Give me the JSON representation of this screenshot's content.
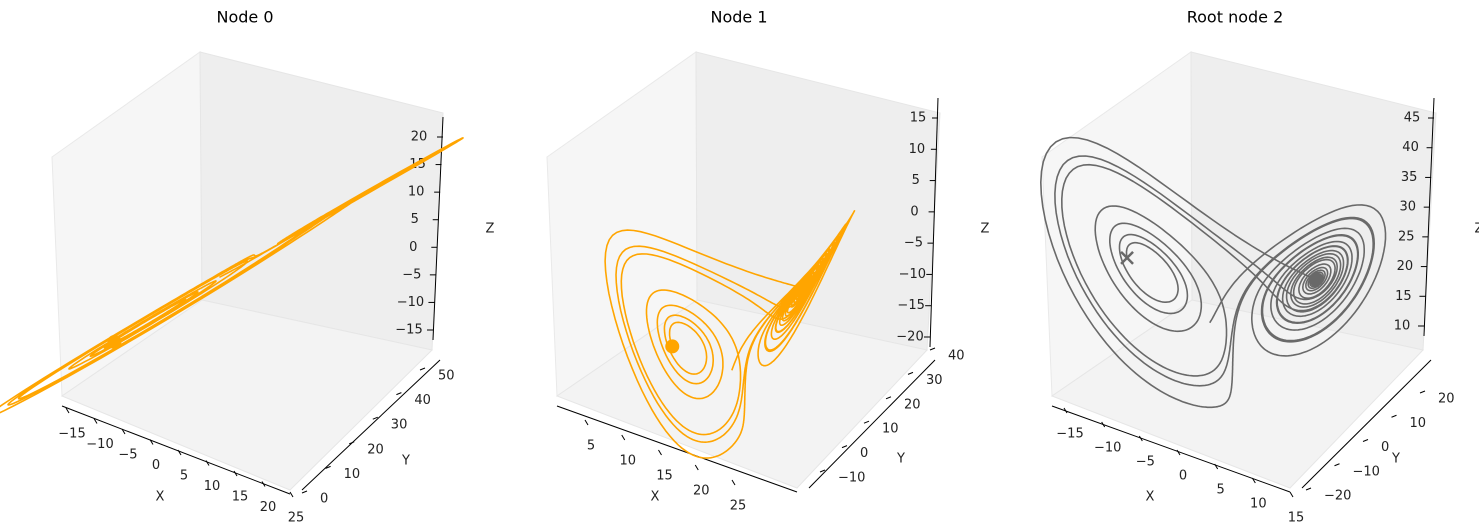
{
  "chart_data": [
    {
      "type": "line3d",
      "title": "Node 0",
      "xlabel": "X",
      "ylabel": "Y",
      "zlabel": "Z",
      "xticks": [
        "−15",
        "−10",
        "−5",
        "0",
        "5",
        "10",
        "15",
        "20",
        "25"
      ],
      "yticks": [
        "0",
        "10",
        "20",
        "30",
        "40",
        "50"
      ],
      "zticks": [
        "−15",
        "−10",
        "−5",
        "0",
        "5",
        "10",
        "15",
        "20"
      ],
      "xlim": [
        -16,
        27
      ],
      "ylim": [
        -4,
        52
      ],
      "zlim": [
        -18,
        23
      ],
      "series_color": "#FFA500",
      "marker": "dot",
      "grid": false
    },
    {
      "type": "line3d",
      "title": "Node 1",
      "xlabel": "X",
      "ylabel": "Y",
      "zlabel": "Z",
      "xticks": [
        "5",
        "10",
        "15",
        "20",
        "25"
      ],
      "yticks": [
        "−10",
        "0",
        "10",
        "20",
        "30",
        "40"
      ],
      "zticks": [
        "−20",
        "−15",
        "−10",
        "−5",
        "0",
        "5",
        "10",
        "15"
      ],
      "xlim": [
        2,
        28
      ],
      "ylim": [
        -14,
        46
      ],
      "zlim": [
        -22,
        15
      ],
      "series_color": "#FFA500",
      "marker": "dot",
      "grid": false
    },
    {
      "type": "line3d",
      "title": "Root node 2",
      "xlabel": "X",
      "ylabel": "Y",
      "zlabel": "Z",
      "xticks": [
        "−15",
        "−10",
        "−5",
        "0",
        "5",
        "10",
        "15"
      ],
      "yticks": [
        "−20",
        "−10",
        "0",
        "10",
        "20"
      ],
      "zticks": [
        "10",
        "15",
        "20",
        "25",
        "30",
        "35",
        "40",
        "45"
      ],
      "xlim": [
        -19,
        19
      ],
      "ylim": [
        -24,
        27
      ],
      "zlim": [
        6,
        46
      ],
      "series_color": "#696969",
      "marker": "cross",
      "grid": false
    }
  ]
}
